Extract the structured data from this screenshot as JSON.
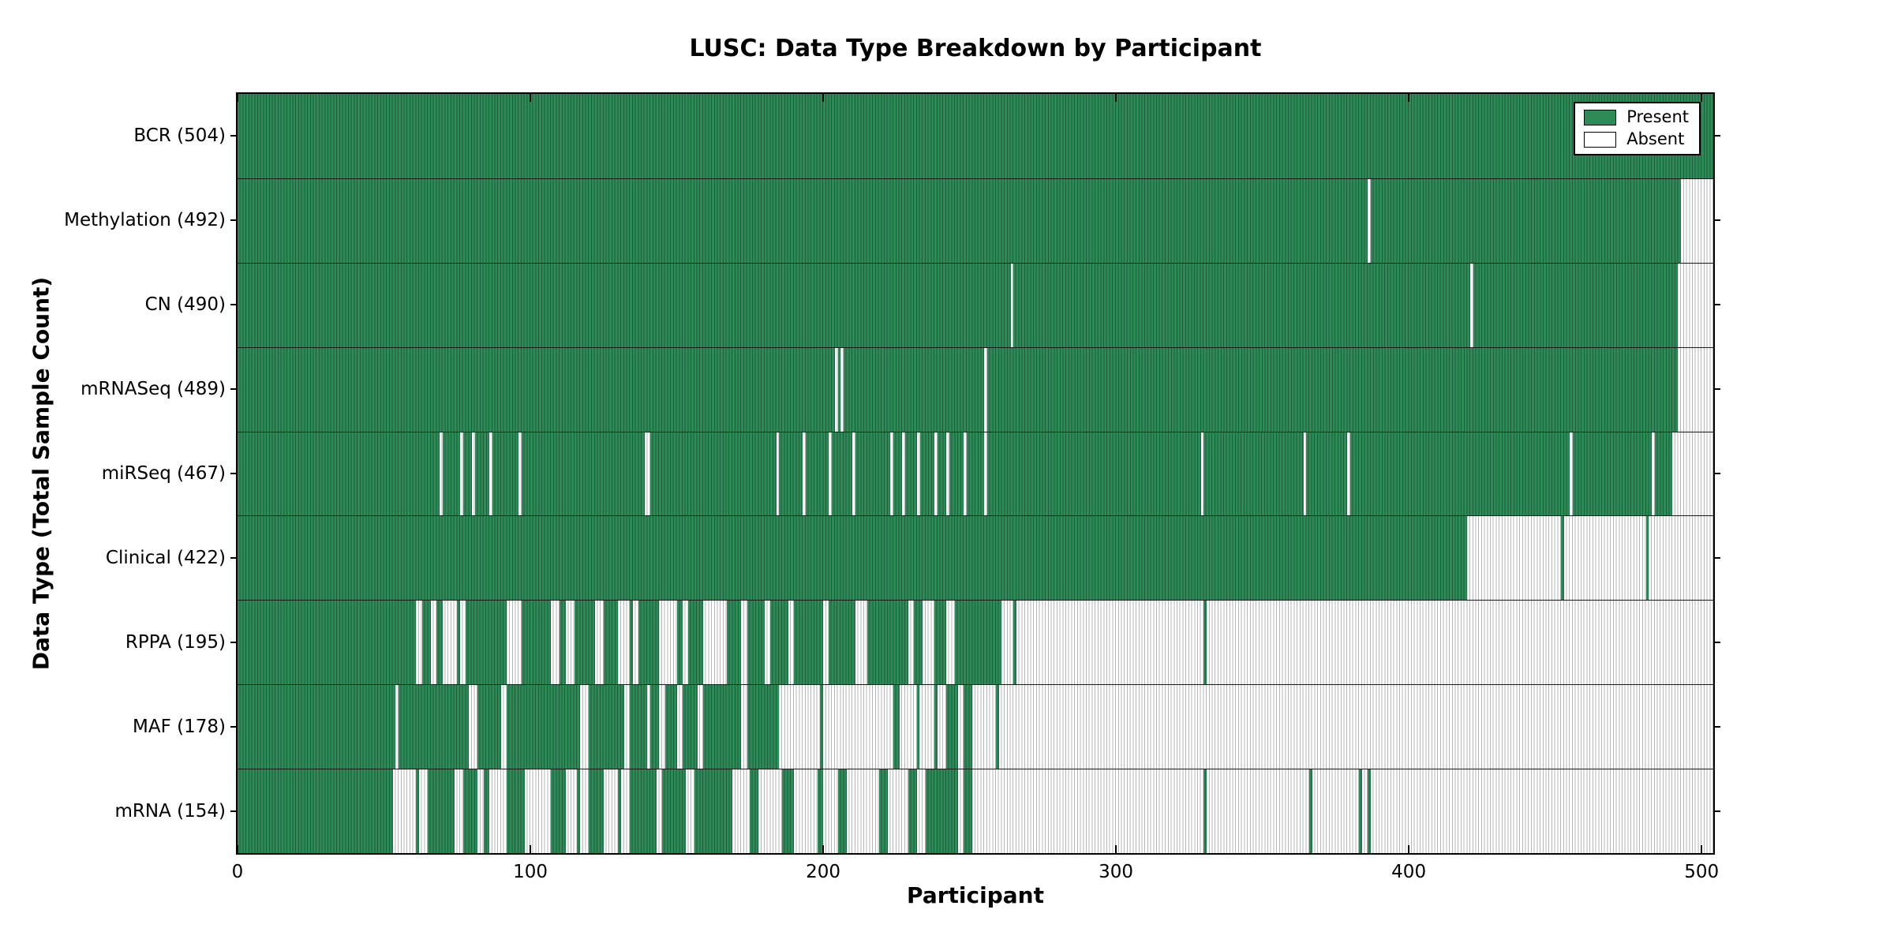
{
  "chart_data": {
    "type": "heatmap",
    "title": "LUSC: Data Type Breakdown by Participant",
    "xlabel": "Participant",
    "ylabel": "Data Type (Total Sample Count)",
    "xlim": [
      0,
      504
    ],
    "x_ticks": [
      0,
      100,
      200,
      300,
      400,
      500
    ],
    "grid": false,
    "legend_position": "upper right",
    "legend": [
      {
        "label": "Present",
        "color": "#2e8b57"
      },
      {
        "label": "Absent",
        "color": "#ffffff"
      }
    ],
    "colors": {
      "present_fill": "#2e8b57",
      "present_edge": "#1d5e3b",
      "absent_fill": "#ffffff",
      "absent_edge": "#b5b5b5",
      "axis": "#000000"
    },
    "rows": [
      {
        "label": "BCR (504)",
        "data_type": "BCR",
        "total": 504,
        "present_segments": [
          [
            0,
            504
          ]
        ]
      },
      {
        "label": "Methylation (492)",
        "data_type": "Methylation",
        "total": 492,
        "present_segments": [
          [
            0,
            386
          ],
          [
            387,
            493
          ]
        ]
      },
      {
        "label": "CN (490)",
        "data_type": "CN",
        "total": 490,
        "present_segments": [
          [
            0,
            264
          ],
          [
            265,
            421
          ],
          [
            422,
            492
          ]
        ]
      },
      {
        "label": "mRNASeq (489)",
        "data_type": "mRNASeq",
        "total": 489,
        "present_segments": [
          [
            0,
            204
          ],
          [
            205,
            206
          ],
          [
            207,
            255
          ],
          [
            256,
            492
          ]
        ]
      },
      {
        "label": "miRSeq (467)",
        "data_type": "miRSeq",
        "total": 467,
        "present_segments": [
          [
            0,
            69
          ],
          [
            70,
            76
          ],
          [
            77,
            80
          ],
          [
            81,
            86
          ],
          [
            87,
            96
          ],
          [
            97,
            139
          ],
          [
            141,
            184
          ],
          [
            185,
            193
          ],
          [
            194,
            202
          ],
          [
            203,
            210
          ],
          [
            211,
            223
          ],
          [
            224,
            227
          ],
          [
            228,
            232
          ],
          [
            233,
            238
          ],
          [
            239,
            242
          ],
          [
            243,
            248
          ],
          [
            249,
            255
          ],
          [
            256,
            329
          ],
          [
            330,
            364
          ],
          [
            365,
            379
          ],
          [
            380,
            455
          ],
          [
            456,
            483
          ],
          [
            484,
            490
          ]
        ]
      },
      {
        "label": "Clinical (422)",
        "data_type": "Clinical",
        "total": 422,
        "present_segments": [
          [
            0,
            420
          ],
          [
            452,
            453
          ],
          [
            481,
            482
          ]
        ]
      },
      {
        "label": "RPPA (195)",
        "data_type": "RPPA",
        "total": 195,
        "present_segments": [
          [
            0,
            61
          ],
          [
            63,
            66
          ],
          [
            68,
            70
          ],
          [
            75,
            76
          ],
          [
            78,
            92
          ],
          [
            97,
            107
          ],
          [
            110,
            112
          ],
          [
            115,
            122
          ],
          [
            125,
            130
          ],
          [
            134,
            135
          ],
          [
            137,
            144
          ],
          [
            150,
            152
          ],
          [
            154,
            159
          ],
          [
            167,
            172
          ],
          [
            174,
            180
          ],
          [
            182,
            188
          ],
          [
            190,
            200
          ],
          [
            202,
            211
          ],
          [
            215,
            229
          ],
          [
            231,
            234
          ],
          [
            238,
            242
          ],
          [
            245,
            261
          ],
          [
            265,
            266
          ],
          [
            330,
            331
          ]
        ]
      },
      {
        "label": "MAF (178)",
        "data_type": "MAF",
        "total": 178,
        "present_segments": [
          [
            0,
            54
          ],
          [
            55,
            79
          ],
          [
            82,
            90
          ],
          [
            92,
            117
          ],
          [
            120,
            132
          ],
          [
            134,
            140
          ],
          [
            141,
            144
          ],
          [
            146,
            150
          ],
          [
            152,
            157
          ],
          [
            159,
            172
          ],
          [
            174,
            185
          ],
          [
            199,
            200
          ],
          [
            224,
            226
          ],
          [
            232,
            233
          ],
          [
            238,
            239
          ],
          [
            242,
            246
          ],
          [
            248,
            251
          ],
          [
            259,
            260
          ]
        ]
      },
      {
        "label": "mRNA (154)",
        "data_type": "mRNA",
        "total": 154,
        "present_segments": [
          [
            0,
            53
          ],
          [
            61,
            62
          ],
          [
            65,
            74
          ],
          [
            77,
            82
          ],
          [
            84,
            86
          ],
          [
            92,
            98
          ],
          [
            107,
            112
          ],
          [
            116,
            117
          ],
          [
            120,
            125
          ],
          [
            130,
            131
          ],
          [
            134,
            143
          ],
          [
            145,
            153
          ],
          [
            156,
            169
          ],
          [
            175,
            178
          ],
          [
            186,
            190
          ],
          [
            198,
            200
          ],
          [
            205,
            208
          ],
          [
            219,
            222
          ],
          [
            229,
            232
          ],
          [
            235,
            246
          ],
          [
            248,
            251
          ],
          [
            330,
            331
          ],
          [
            366,
            367
          ],
          [
            383,
            384
          ],
          [
            386,
            387
          ]
        ]
      }
    ]
  }
}
